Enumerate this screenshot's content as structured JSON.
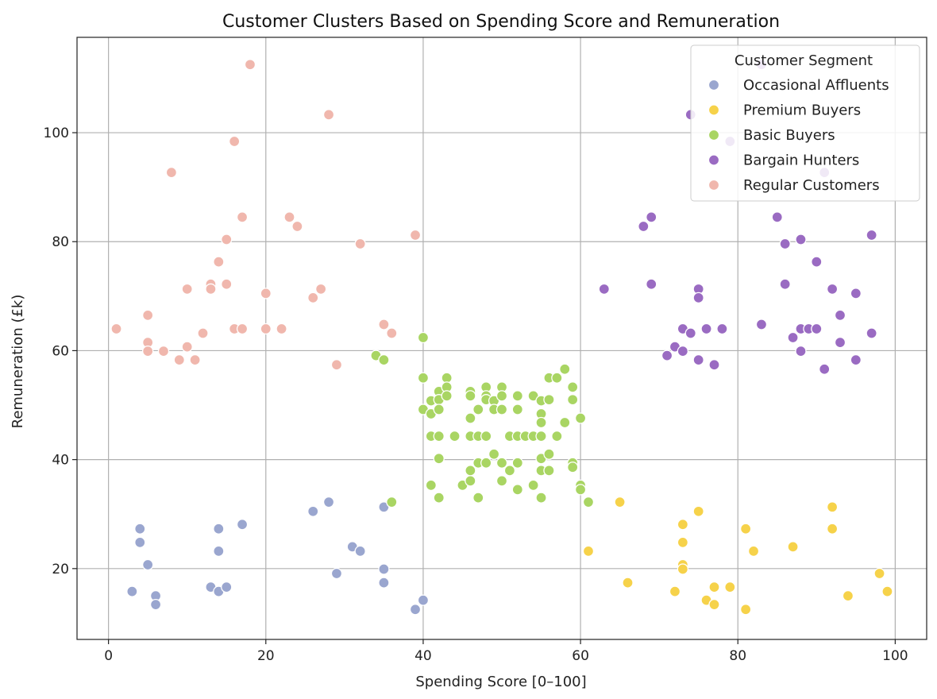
{
  "chart_data": {
    "type": "scatter",
    "title": "Customer Clusters Based on Spending Score and Remuneration",
    "xlabel": "Spending Score [0–100]",
    "ylabel": "Remuneration (£k)",
    "xlim": [
      -4,
      104
    ],
    "ylim": [
      7,
      117.5
    ],
    "xticks": [
      0,
      20,
      40,
      60,
      80,
      100
    ],
    "yticks": [
      20,
      40,
      60,
      80,
      100
    ],
    "grid": true,
    "legend_title": "Customer Segment",
    "legend_position": "top-right",
    "series": [
      {
        "name": "Occasional Affluents",
        "color": "#9aa6cf",
        "points": [
          [
            3,
            15.8
          ],
          [
            4,
            27.3
          ],
          [
            4,
            24.8
          ],
          [
            5,
            20.7
          ],
          [
            6,
            15
          ],
          [
            6,
            13.4
          ],
          [
            13,
            16.6
          ],
          [
            14,
            15.8
          ],
          [
            14,
            27.3
          ],
          [
            14,
            23.2
          ],
          [
            15,
            16.6
          ],
          [
            17,
            28.1
          ],
          [
            26,
            30.5
          ],
          [
            28,
            32.2
          ],
          [
            29,
            19.1
          ],
          [
            31,
            24
          ],
          [
            32,
            23.2
          ],
          [
            35,
            31.3
          ],
          [
            35,
            19.9
          ],
          [
            35,
            17.4
          ],
          [
            39,
            12.5
          ],
          [
            40,
            14.2
          ]
        ]
      },
      {
        "name": "Premium Buyers",
        "color": "#f6d24a",
        "points": [
          [
            61,
            23.2
          ],
          [
            65,
            32.2
          ],
          [
            66,
            17.4
          ],
          [
            72,
            15.8
          ],
          [
            73,
            28.1
          ],
          [
            73,
            24.8
          ],
          [
            73,
            20.7
          ],
          [
            73,
            19.9
          ],
          [
            75,
            30.5
          ],
          [
            76,
            14.2
          ],
          [
            77,
            16.6
          ],
          [
            77,
            13.4
          ],
          [
            79,
            16.6
          ],
          [
            81,
            27.3
          ],
          [
            81,
            12.5
          ],
          [
            82,
            23.2
          ],
          [
            87,
            24
          ],
          [
            92,
            31.3
          ],
          [
            92,
            27.3
          ],
          [
            94,
            15
          ],
          [
            98,
            19.1
          ],
          [
            99,
            15.8
          ]
        ]
      },
      {
        "name": "Basic Buyers",
        "color": "#a9d563",
        "points": [
          [
            34,
            59.1
          ],
          [
            35,
            58.3
          ],
          [
            36,
            32.2
          ],
          [
            40,
            62.4
          ],
          [
            40,
            55
          ],
          [
            40,
            49.2
          ],
          [
            41,
            50.8
          ],
          [
            41,
            48.4
          ],
          [
            41,
            44.3
          ],
          [
            41,
            35.3
          ],
          [
            42,
            52.5
          ],
          [
            42,
            51
          ],
          [
            42,
            49.2
          ],
          [
            42,
            44.3
          ],
          [
            42,
            40.2
          ],
          [
            42,
            33
          ],
          [
            43,
            55
          ],
          [
            43,
            53.3
          ],
          [
            43,
            51.7
          ],
          [
            44,
            44.3
          ],
          [
            45,
            35.3
          ],
          [
            46,
            52.5
          ],
          [
            46,
            51.7
          ],
          [
            46,
            47.6
          ],
          [
            46,
            44.3
          ],
          [
            46,
            38
          ],
          [
            46,
            36.1
          ],
          [
            47,
            49.2
          ],
          [
            47,
            44.3
          ],
          [
            47,
            39.4
          ],
          [
            47,
            33
          ],
          [
            48,
            53.3
          ],
          [
            48,
            51.7
          ],
          [
            48,
            51
          ],
          [
            48,
            44.3
          ],
          [
            48,
            39.4
          ],
          [
            49,
            50.8
          ],
          [
            49,
            49.2
          ],
          [
            49,
            41
          ],
          [
            50,
            53.3
          ],
          [
            50,
            51.7
          ],
          [
            50,
            49.2
          ],
          [
            50,
            39.4
          ],
          [
            50,
            36.1
          ],
          [
            51,
            44.3
          ],
          [
            51,
            38
          ],
          [
            52,
            51.7
          ],
          [
            52,
            49.2
          ],
          [
            52,
            44.3
          ],
          [
            52,
            39.4
          ],
          [
            52,
            34.5
          ],
          [
            53,
            44.3
          ],
          [
            54,
            51.7
          ],
          [
            54,
            44.3
          ],
          [
            54,
            35.3
          ],
          [
            55,
            50.8
          ],
          [
            55,
            48.4
          ],
          [
            55,
            46.8
          ],
          [
            55,
            44.3
          ],
          [
            55,
            40.2
          ],
          [
            55,
            38
          ],
          [
            55,
            33
          ],
          [
            56,
            55
          ],
          [
            56,
            51
          ],
          [
            56,
            41
          ],
          [
            56,
            38
          ],
          [
            57,
            55
          ],
          [
            57,
            44.3
          ],
          [
            58,
            56.6
          ],
          [
            58,
            46.8
          ],
          [
            59,
            53.3
          ],
          [
            59,
            51
          ],
          [
            59,
            39.4
          ],
          [
            59,
            38.6
          ],
          [
            60,
            47.6
          ],
          [
            60,
            35.3
          ],
          [
            60,
            34.5
          ],
          [
            61,
            32.2
          ]
        ]
      },
      {
        "name": "Bargain Hunters",
        "color": "#9a6bc2",
        "points": [
          [
            63,
            71.3
          ],
          [
            68,
            82.8
          ],
          [
            69,
            84.5
          ],
          [
            69,
            72.2
          ],
          [
            71,
            59.1
          ],
          [
            72,
            60.7
          ],
          [
            73,
            64
          ],
          [
            73,
            59.9
          ],
          [
            74,
            103.3
          ],
          [
            74,
            63.2
          ],
          [
            75,
            71.3
          ],
          [
            75,
            69.7
          ],
          [
            75,
            58.3
          ],
          [
            76,
            64
          ],
          [
            77,
            57.4
          ],
          [
            78,
            64
          ],
          [
            79,
            98.4
          ],
          [
            83,
            112.5
          ],
          [
            83,
            64.8
          ],
          [
            85,
            84.5
          ],
          [
            86,
            79.6
          ],
          [
            86,
            72.2
          ],
          [
            87,
            62.4
          ],
          [
            88,
            80.4
          ],
          [
            88,
            64
          ],
          [
            88,
            59.9
          ],
          [
            89,
            64
          ],
          [
            90,
            76.3
          ],
          [
            90,
            64
          ],
          [
            91,
            92.7
          ],
          [
            91,
            56.6
          ],
          [
            92,
            71.3
          ],
          [
            93,
            66.5
          ],
          [
            93,
            61.5
          ],
          [
            95,
            70.5
          ],
          [
            95,
            58.3
          ],
          [
            97,
            81.2
          ],
          [
            97,
            63.2
          ]
        ]
      },
      {
        "name": "Regular Customers",
        "color": "#f0b7ad",
        "points": [
          [
            1,
            64
          ],
          [
            5,
            66.5
          ],
          [
            5,
            61.5
          ],
          [
            5,
            59.9
          ],
          [
            7,
            59.9
          ],
          [
            8,
            92.7
          ],
          [
            9,
            58.3
          ],
          [
            10,
            71.3
          ],
          [
            10,
            60.7
          ],
          [
            11,
            58.3
          ],
          [
            12,
            63.2
          ],
          [
            13,
            72.2
          ],
          [
            13,
            71.3
          ],
          [
            14,
            76.3
          ],
          [
            15,
            80.4
          ],
          [
            15,
            72.2
          ],
          [
            16,
            98.4
          ],
          [
            16,
            64
          ],
          [
            17,
            84.5
          ],
          [
            17,
            64
          ],
          [
            18,
            112.5
          ],
          [
            20,
            70.5
          ],
          [
            20,
            64
          ],
          [
            22,
            64
          ],
          [
            23,
            84.5
          ],
          [
            24,
            82.8
          ],
          [
            26,
            69.7
          ],
          [
            27,
            71.3
          ],
          [
            28,
            103.3
          ],
          [
            29,
            57.4
          ],
          [
            32,
            79.6
          ],
          [
            35,
            64.8
          ],
          [
            36,
            63.2
          ],
          [
            39,
            81.2
          ]
        ]
      }
    ]
  }
}
